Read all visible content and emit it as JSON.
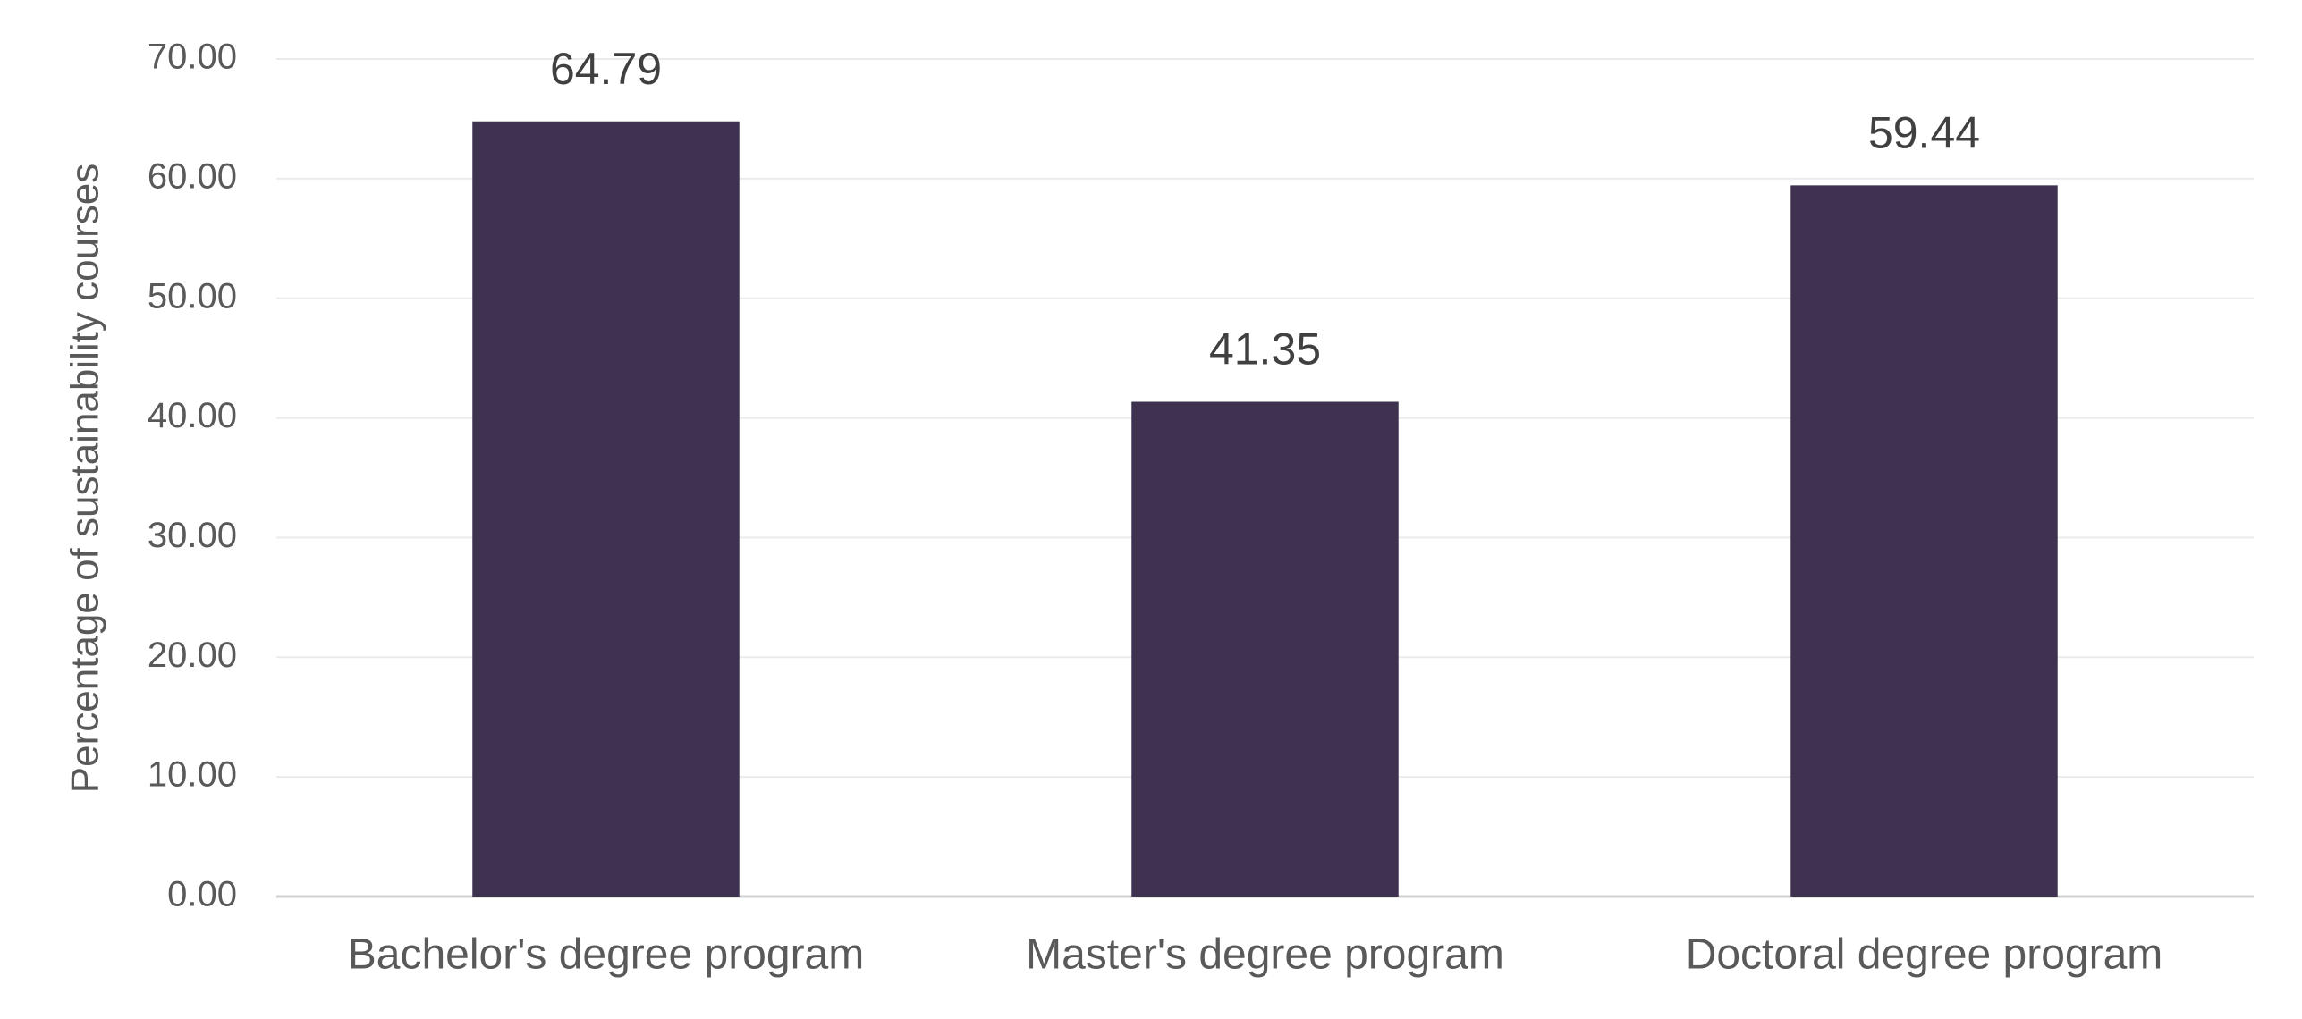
{
  "chart_data": {
    "type": "bar",
    "y_axis_label": "Percentage of sustainability courses",
    "categories": [
      "Bachelor's degree program",
      "Master's degree program",
      "Doctoral degree program"
    ],
    "values": [
      64.79,
      41.35,
      59.44
    ],
    "color": "#3f3150",
    "ylim": [
      0,
      70
    ],
    "yticks": [
      {
        "value": 0,
        "label": "0.00"
      },
      {
        "value": 10,
        "label": "10.00"
      },
      {
        "value": 20,
        "label": "20.00"
      },
      {
        "value": 30,
        "label": "30.00"
      },
      {
        "value": 40,
        "label": "40.00"
      },
      {
        "value": 50,
        "label": "50.00"
      },
      {
        "value": 60,
        "label": "60.00"
      },
      {
        "value": 70,
        "label": "70.00"
      }
    ],
    "grid": true
  }
}
